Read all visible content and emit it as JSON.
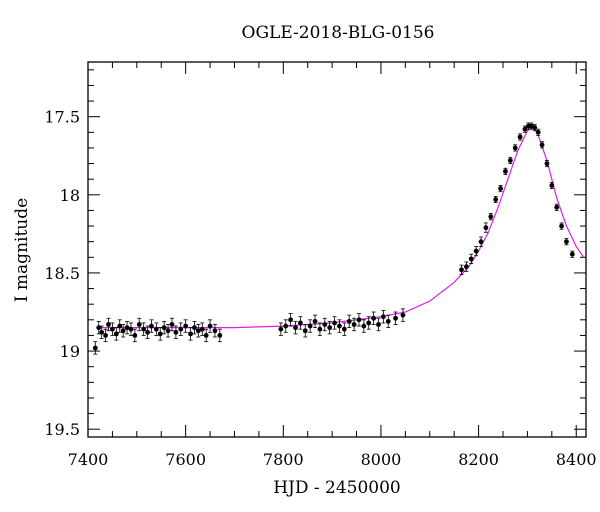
{
  "chart_data": {
    "type": "scatter",
    "title": "OGLE-2018-BLG-0156",
    "xlabel": "HJD - 2450000",
    "ylabel": "I magnitude",
    "xlim": [
      7400,
      8420
    ],
    "ylim": [
      19.55,
      17.15
    ],
    "y_inverted": true,
    "x_ticks": [
      7400,
      7600,
      7800,
      8000,
      8200,
      8400
    ],
    "y_ticks": [
      17.5,
      18,
      18.5,
      19,
      19.5
    ],
    "x_tick_labels": [
      "7400",
      "7600",
      "7800",
      "8000",
      "8200",
      "8400"
    ],
    "y_tick_labels": [
      "17.5",
      "18",
      "18.5",
      "19",
      "19.5"
    ],
    "grid": false,
    "legend": "none",
    "colors": {
      "points": "#000000",
      "model": "#e020e0"
    },
    "series": [
      {
        "kind": "points_with_errorbars",
        "x": [
          7415,
          7422,
          7428,
          7436,
          7442,
          7450,
          7458,
          7465,
          7472,
          7480,
          7488,
          7496,
          7505,
          7514,
          7522,
          7530,
          7540,
          7548,
          7556,
          7564,
          7572,
          7580,
          7590,
          7600,
          7610,
          7618,
          7626,
          7634,
          7642,
          7650,
          7660,
          7670,
          7795,
          7805,
          7815,
          7825,
          7835,
          7845,
          7855,
          7865,
          7875,
          7885,
          7895,
          7905,
          7915,
          7925,
          7935,
          7945,
          7955,
          7965,
          7975,
          7985,
          7995,
          8005,
          8015,
          8030,
          8045,
          8165,
          8175,
          8185,
          8195,
          8205,
          8215,
          8225,
          8235,
          8245,
          8255,
          8265,
          8275,
          8285,
          8295,
          8302,
          8308,
          8315,
          8322,
          8330,
          8340,
          8350,
          8360,
          8370,
          8380,
          8392
        ],
        "y": [
          18.98,
          18.85,
          18.88,
          18.9,
          18.83,
          18.86,
          18.89,
          18.84,
          18.87,
          18.85,
          18.86,
          18.9,
          18.83,
          18.86,
          18.88,
          18.84,
          18.86,
          18.89,
          18.85,
          18.87,
          18.83,
          18.88,
          18.86,
          18.84,
          18.89,
          18.85,
          18.87,
          18.86,
          18.9,
          18.84,
          18.87,
          18.9,
          18.86,
          18.84,
          18.8,
          18.85,
          18.82,
          18.87,
          18.84,
          18.81,
          18.86,
          18.83,
          18.85,
          18.82,
          18.84,
          18.86,
          18.81,
          18.83,
          18.8,
          18.84,
          18.82,
          18.79,
          18.83,
          18.78,
          18.81,
          18.79,
          18.77,
          18.48,
          18.46,
          18.41,
          18.36,
          18.3,
          18.21,
          18.14,
          18.03,
          17.96,
          17.85,
          17.78,
          17.7,
          17.63,
          17.58,
          17.56,
          17.56,
          17.57,
          17.6,
          17.68,
          17.8,
          17.94,
          18.08,
          18.2,
          18.3,
          18.38
        ],
        "err": [
          0.04,
          0.04,
          0.04,
          0.04,
          0.04,
          0.04,
          0.04,
          0.04,
          0.04,
          0.04,
          0.04,
          0.04,
          0.04,
          0.04,
          0.04,
          0.04,
          0.04,
          0.04,
          0.04,
          0.04,
          0.04,
          0.04,
          0.04,
          0.04,
          0.04,
          0.04,
          0.04,
          0.04,
          0.04,
          0.04,
          0.04,
          0.04,
          0.04,
          0.04,
          0.04,
          0.04,
          0.04,
          0.04,
          0.04,
          0.04,
          0.04,
          0.04,
          0.04,
          0.04,
          0.04,
          0.04,
          0.04,
          0.04,
          0.04,
          0.04,
          0.04,
          0.04,
          0.04,
          0.04,
          0.04,
          0.04,
          0.04,
          0.03,
          0.03,
          0.03,
          0.03,
          0.03,
          0.03,
          0.02,
          0.02,
          0.02,
          0.02,
          0.02,
          0.02,
          0.02,
          0.02,
          0.02,
          0.02,
          0.02,
          0.02,
          0.02,
          0.02,
          0.02,
          0.02,
          0.02,
          0.02,
          0.02
        ]
      },
      {
        "kind": "model_line",
        "x": [
          7420,
          7500,
          7600,
          7700,
          7800,
          7900,
          8000,
          8050,
          8100,
          8150,
          8180,
          8200,
          8220,
          8240,
          8260,
          8280,
          8300,
          8310,
          8320,
          8340,
          8360,
          8380,
          8400,
          8415
        ],
        "y": [
          18.85,
          18.85,
          18.85,
          18.85,
          18.84,
          18.82,
          18.78,
          18.75,
          18.68,
          18.56,
          18.46,
          18.36,
          18.24,
          18.08,
          17.9,
          17.72,
          17.59,
          17.57,
          17.6,
          17.78,
          18.02,
          18.2,
          18.33,
          18.4
        ]
      }
    ]
  }
}
